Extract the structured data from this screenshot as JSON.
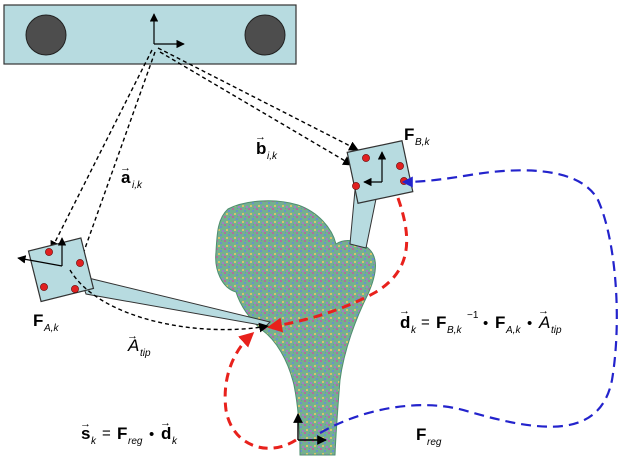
{
  "labels": {
    "a_ik": {
      "main": "a",
      "sub": "i,k"
    },
    "b_ik": {
      "main": "b",
      "sub": "i,k"
    },
    "F_Bk": {
      "main": "F",
      "sub": "B,k"
    },
    "F_Ak": {
      "main": "F",
      "sub": "A,k"
    },
    "A_tip": {
      "main": "A",
      "sub": "tip"
    },
    "d_eq": {
      "lhs": "d",
      "lhs_sub": "k",
      "eq": "=",
      "f1": "F",
      "f1_sub": "B,k",
      "f1_sup": "−1",
      "dot1": "•",
      "f2": "F",
      "f2_sub": "A,k",
      "dot2": "•",
      "a": "A",
      "a_sub": "tip"
    },
    "s_eq": {
      "lhs": "s",
      "lhs_sub": "k",
      "eq": "=",
      "f": "F",
      "f_sub": "reg",
      "dot": "•",
      "d": "d",
      "d_sub": "k"
    },
    "F_reg": {
      "main": "F",
      "sub": "reg"
    }
  },
  "colors": {
    "tracker_fill": "#b7dbe0",
    "camera_fill": "#b7dbe0",
    "lens": "#4d4d4d",
    "marker": "#e02020",
    "dashed_black": "#000000",
    "dashed_red": "#e8211c",
    "dashed_blue": "#2323cc",
    "bone": "#6fae8c"
  }
}
